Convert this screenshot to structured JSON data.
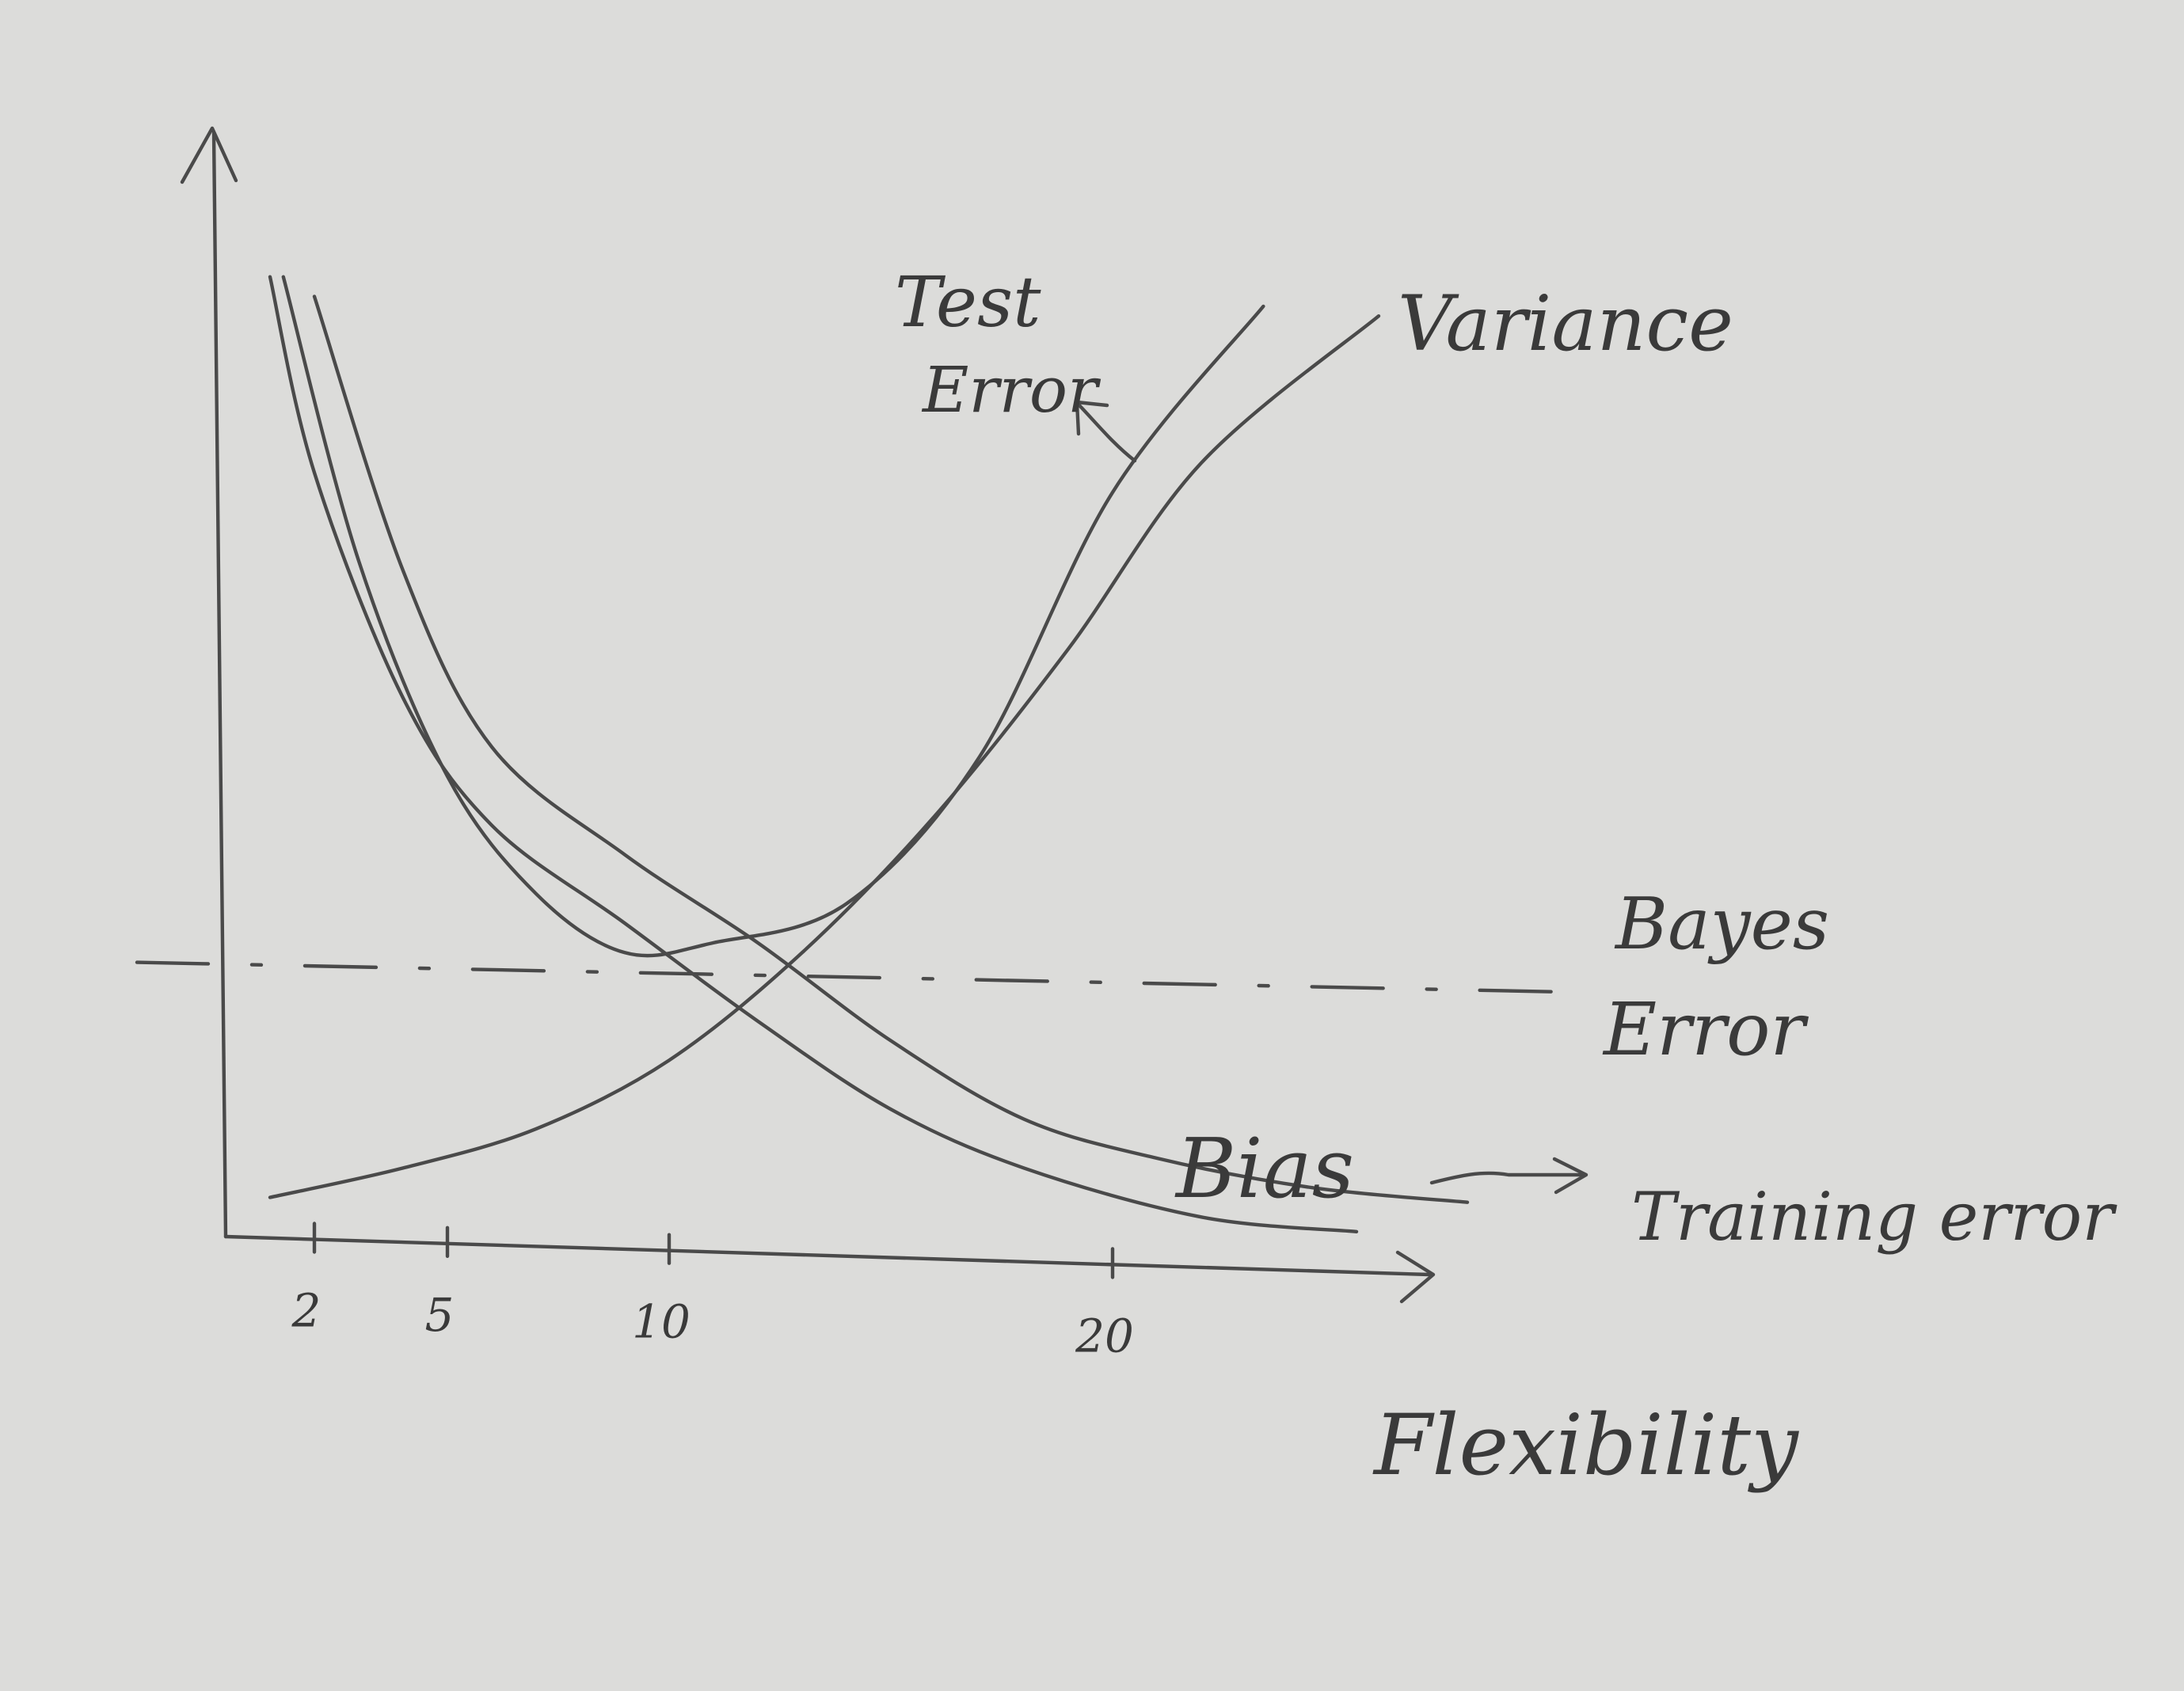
{
  "chart_data": {
    "type": "line",
    "xlabel": "Flexibility",
    "x_ticks": [
      2,
      5,
      10,
      20
    ],
    "xlim": [
      0,
      25
    ],
    "ylim": [
      0,
      10
    ],
    "grid": false,
    "series": [
      {
        "name": "Test Error",
        "color": "#4a4a4a",
        "style": "solid",
        "points": [
          [
            1.3,
            9.8
          ],
          [
            3,
            6.9
          ],
          [
            5,
            4.7
          ],
          [
            7,
            3.5
          ],
          [
            9,
            2.9
          ],
          [
            11,
            3.0
          ],
          [
            14,
            3.4
          ],
          [
            17,
            4.9
          ],
          [
            20,
            7.6
          ],
          [
            23.4,
            9.5
          ]
        ]
      },
      {
        "name": "Variance",
        "color": "#4a4a4a",
        "style": "solid",
        "points": [
          [
            1,
            0.4
          ],
          [
            4,
            0.7
          ],
          [
            7,
            1.1
          ],
          [
            10,
            1.8
          ],
          [
            13,
            2.9
          ],
          [
            16,
            4.3
          ],
          [
            19,
            6.0
          ],
          [
            22,
            7.9
          ],
          [
            26,
            9.4
          ]
        ]
      },
      {
        "name": "Bias",
        "color": "#4a4a4a",
        "style": "solid",
        "points": [
          [
            1,
            9.8
          ],
          [
            2,
            7.8
          ],
          [
            4,
            5.5
          ],
          [
            6,
            4.2
          ],
          [
            9,
            3.2
          ],
          [
            12,
            2.2
          ],
          [
            15,
            1.3
          ],
          [
            18,
            0.7
          ],
          [
            22,
            0.2
          ],
          [
            25.5,
            0.05
          ]
        ]
      },
      {
        "name": "Training error",
        "color": "#4a4a4a",
        "style": "solid",
        "points": [
          [
            2,
            9.6
          ],
          [
            4,
            6.8
          ],
          [
            6,
            5.0
          ],
          [
            9,
            3.9
          ],
          [
            12,
            3.0
          ],
          [
            15,
            2.0
          ],
          [
            18,
            1.2
          ],
          [
            21,
            0.8
          ],
          [
            24.5,
            0.5
          ],
          [
            28,
            0.35
          ]
        ]
      },
      {
        "name": "Bayes Error",
        "color": "#4a4a4a",
        "style": "dashed",
        "points": [
          [
            -2,
            2.8
          ],
          [
            30,
            2.5
          ]
        ]
      }
    ],
    "annotations": [
      {
        "text": "Test",
        "points_to": "Test Error"
      },
      {
        "text": "Error",
        "points_to": "Test Error"
      },
      {
        "text": "Variance",
        "points_to": "Variance"
      },
      {
        "text": "Bayes",
        "points_to": "Bayes Error"
      },
      {
        "text": "Error",
        "points_to": "Bayes Error"
      },
      {
        "text": "Bias",
        "points_to": "Bias"
      },
      {
        "text": "Training error",
        "points_to": "Training error"
      }
    ]
  }
}
